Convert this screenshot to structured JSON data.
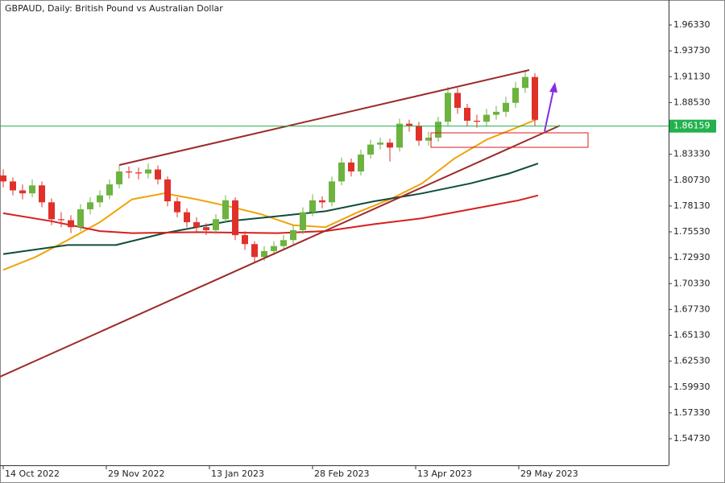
{
  "chart_data": {
    "type": "candlestick",
    "title": "GBPAUD, Daily:  British Pound vs Australian Dollar",
    "up_color": "#6cb33f",
    "down_color": "#e0302a",
    "xlim": [
      -1,
      206.5
    ],
    "ylim": [
      1.5206,
      1.9884
    ],
    "xticks": [
      {
        "value": 0,
        "label": "14 Oct 2022"
      },
      {
        "value": 32,
        "label": "29 Nov 2022"
      },
      {
        "value": 64,
        "label": "13 Jan 2023"
      },
      {
        "value": 96,
        "label": "28 Feb 2023"
      },
      {
        "value": 128,
        "label": "13 Apr 2023"
      },
      {
        "value": 160,
        "label": "29 May 2023"
      }
    ],
    "yticks": [
      {
        "value": 1.9633,
        "label": "1.96330"
      },
      {
        "value": 1.9373,
        "label": "1.93730"
      },
      {
        "value": 1.9113,
        "label": "1.91130"
      },
      {
        "value": 1.8853,
        "label": "1.88530"
      },
      {
        "value": 1.8333,
        "label": "1.83330"
      },
      {
        "value": 1.8073,
        "label": "1.80730"
      },
      {
        "value": 1.7813,
        "label": "1.78130"
      },
      {
        "value": 1.7553,
        "label": "1.75530"
      },
      {
        "value": 1.7293,
        "label": "1.72930"
      },
      {
        "value": 1.7033,
        "label": "1.70330"
      },
      {
        "value": 1.6773,
        "label": "1.67730"
      },
      {
        "value": 1.6513,
        "label": "1.65130"
      },
      {
        "value": 1.6253,
        "label": "1.62530"
      },
      {
        "value": 1.5993,
        "label": "1.59930"
      },
      {
        "value": 1.5733,
        "label": "1.57330"
      },
      {
        "value": 1.5473,
        "label": "1.54730"
      }
    ],
    "current_price": 1.86159,
    "current_price_color": "#22b14c",
    "candles": {
      "x": [
        0,
        3,
        6,
        9,
        12,
        15,
        18,
        21,
        24,
        27,
        30,
        33,
        36,
        39,
        42,
        45,
        48,
        51,
        54,
        57,
        60,
        63,
        66,
        69,
        72,
        75,
        78,
        81,
        84,
        87,
        90,
        93,
        96,
        99,
        102,
        105,
        108,
        111,
        114,
        117,
        120,
        123,
        126,
        129,
        132,
        135,
        138,
        141,
        144,
        147,
        150,
        153,
        156,
        159,
        162,
        165
      ],
      "open": [
        1.812,
        1.806,
        1.797,
        1.794,
        1.802,
        1.785,
        1.768,
        1.767,
        1.76,
        1.778,
        1.785,
        1.792,
        1.803,
        1.816,
        1.815,
        1.814,
        1.818,
        1.808,
        1.786,
        1.775,
        1.765,
        1.76,
        1.757,
        1.768,
        1.787,
        1.752,
        1.743,
        1.73,
        1.736,
        1.741,
        1.747,
        1.757,
        1.775,
        1.787,
        1.785,
        1.806,
        1.825,
        1.816,
        1.833,
        1.843,
        1.845,
        1.84,
        1.864,
        1.862,
        1.847,
        1.85,
        1.866,
        1.895,
        1.88,
        1.867,
        1.866,
        1.873,
        1.876,
        1.885,
        1.9,
        1.911
      ],
      "high": [
        1.818,
        1.81,
        1.803,
        1.808,
        1.806,
        1.789,
        1.775,
        1.772,
        1.783,
        1.79,
        1.797,
        1.808,
        1.822,
        1.821,
        1.82,
        1.824,
        1.822,
        1.811,
        1.79,
        1.779,
        1.77,
        1.764,
        1.773,
        1.792,
        1.79,
        1.756,
        1.746,
        1.741,
        1.746,
        1.752,
        1.762,
        1.78,
        1.793,
        1.791,
        1.811,
        1.83,
        1.829,
        1.838,
        1.848,
        1.85,
        1.849,
        1.869,
        1.868,
        1.866,
        1.856,
        1.871,
        1.901,
        1.9,
        1.884,
        1.873,
        1.879,
        1.882,
        1.891,
        1.906,
        1.918,
        1.915
      ],
      "low": [
        1.8,
        1.792,
        1.788,
        1.79,
        1.78,
        1.762,
        1.76,
        1.754,
        1.756,
        1.773,
        1.78,
        1.788,
        1.799,
        1.809,
        1.808,
        1.809,
        1.803,
        1.781,
        1.77,
        1.76,
        1.754,
        1.752,
        1.753,
        1.765,
        1.747,
        1.737,
        1.724,
        1.726,
        1.732,
        1.737,
        1.743,
        1.753,
        1.771,
        1.779,
        1.781,
        1.802,
        1.811,
        1.812,
        1.829,
        1.838,
        1.826,
        1.836,
        1.856,
        1.842,
        1.842,
        1.846,
        1.862,
        1.874,
        1.861,
        1.86,
        1.861,
        1.868,
        1.871,
        1.88,
        1.895,
        1.862
      ],
      "close": [
        1.806,
        1.797,
        1.794,
        1.802,
        1.785,
        1.768,
        1.767,
        1.76,
        1.778,
        1.785,
        1.792,
        1.803,
        1.816,
        1.815,
        1.814,
        1.818,
        1.808,
        1.786,
        1.775,
        1.765,
        1.76,
        1.757,
        1.768,
        1.787,
        1.752,
        1.743,
        1.73,
        1.736,
        1.741,
        1.747,
        1.757,
        1.775,
        1.787,
        1.785,
        1.806,
        1.825,
        1.816,
        1.833,
        1.843,
        1.845,
        1.84,
        1.864,
        1.862,
        1.847,
        1.85,
        1.866,
        1.895,
        1.88,
        1.867,
        1.866,
        1.873,
        1.876,
        1.885,
        1.9,
        1.911,
        1.868
      ]
    },
    "series": [
      {
        "color": "#f0a30a",
        "x": [
          0,
          10,
          20,
          30,
          40,
          50,
          60,
          70,
          80,
          90,
          100,
          110,
          120,
          130,
          140,
          150,
          160,
          166
        ],
        "values": [
          1.717,
          1.73,
          1.747,
          1.765,
          1.788,
          1.794,
          1.788,
          1.781,
          1.773,
          1.762,
          1.76,
          1.775,
          1.788,
          1.804,
          1.829,
          1.848,
          1.861,
          1.869
        ]
      },
      {
        "color": "#0f4d3a",
        "x": [
          0,
          20,
          35,
          50,
          70,
          85,
          100,
          115,
          130,
          145,
          157,
          166
        ],
        "values": [
          1.733,
          1.742,
          1.742,
          1.754,
          1.766,
          1.771,
          1.776,
          1.786,
          1.794,
          1.804,
          1.814,
          1.824
        ]
      },
      {
        "color": "#d61f1f",
        "x": [
          0,
          15,
          30,
          40,
          60,
          85,
          100,
          115,
          130,
          145,
          160,
          166
        ],
        "values": [
          1.774,
          1.766,
          1.756,
          1.754,
          1.755,
          1.754,
          1.756,
          1.763,
          1.769,
          1.778,
          1.787,
          1.792
        ]
      }
    ]
  }
}
